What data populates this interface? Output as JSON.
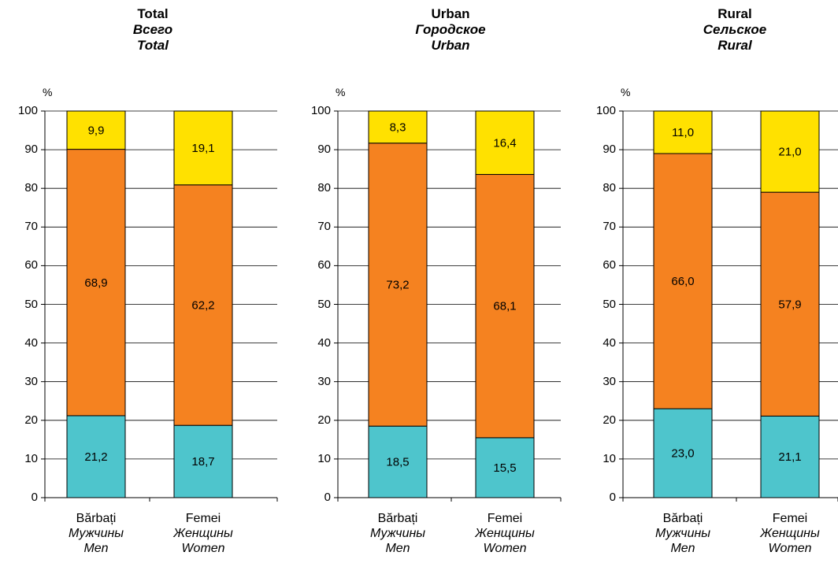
{
  "colors": {
    "bottom": "#4ec5cc",
    "middle": "#f58220",
    "top": "#ffe100",
    "stroke": "#000000",
    "grid": "#000000"
  },
  "chart_data": [
    {
      "type": "bar",
      "stacked": true,
      "title": [
        "Total",
        "Всего",
        "Total"
      ],
      "ylabel": "%",
      "ylim": [
        0,
        100
      ],
      "yticks": [
        "0",
        "10",
        "20",
        "30",
        "40",
        "50",
        "60",
        "70",
        "80",
        "90",
        "100"
      ],
      "grid": true,
      "categories": [
        {
          "line1": "Bărbați",
          "line2": "Мужчины",
          "line3": "Men"
        },
        {
          "line1": "Femei",
          "line2": "Женщины",
          "line3": "Women"
        }
      ],
      "series": [
        {
          "values": [
            21.2,
            18.7
          ],
          "labels": [
            "21,2",
            "18,7"
          ]
        },
        {
          "values": [
            68.9,
            62.2
          ],
          "labels": [
            "68,9",
            "62,2"
          ]
        },
        {
          "values": [
            9.9,
            19.1
          ],
          "labels": [
            "9,9",
            "19,1"
          ]
        }
      ]
    },
    {
      "type": "bar",
      "stacked": true,
      "title": [
        "Urban",
        "Городское",
        "Urban"
      ],
      "ylabel": "%",
      "ylim": [
        0,
        100
      ],
      "yticks": [
        "0",
        "10",
        "20",
        "30",
        "40",
        "50",
        "60",
        "70",
        "80",
        "90",
        "100"
      ],
      "grid": true,
      "categories": [
        {
          "line1": "Bărbați",
          "line2": "Мужчины",
          "line3": "Men"
        },
        {
          "line1": "Femei",
          "line2": "Женщины",
          "line3": "Women"
        }
      ],
      "series": [
        {
          "values": [
            18.5,
            15.5
          ],
          "labels": [
            "18,5",
            "15,5"
          ]
        },
        {
          "values": [
            73.2,
            68.1
          ],
          "labels": [
            "73,2",
            "68,1"
          ]
        },
        {
          "values": [
            8.3,
            16.4
          ],
          "labels": [
            "8,3",
            "16,4"
          ]
        }
      ]
    },
    {
      "type": "bar",
      "stacked": true,
      "title": [
        "Rural",
        "Сельское",
        "Rural"
      ],
      "ylabel": "%",
      "ylim": [
        0,
        100
      ],
      "yticks": [
        "0",
        "10",
        "20",
        "30",
        "40",
        "50",
        "60",
        "70",
        "80",
        "90",
        "100"
      ],
      "grid": true,
      "categories": [
        {
          "line1": "Bărbați",
          "line2": "Мужчины",
          "line3": "Men"
        },
        {
          "line1": "Femei",
          "line2": "Женщины",
          "line3": "Women"
        }
      ],
      "series": [
        {
          "values": [
            23.0,
            21.1
          ],
          "labels": [
            "23,0",
            "21,1"
          ]
        },
        {
          "values": [
            66.0,
            57.9
          ],
          "labels": [
            "66,0",
            "57,9"
          ]
        },
        {
          "values": [
            11.0,
            21.0
          ],
          "labels": [
            "11,0",
            "21,0"
          ]
        }
      ]
    }
  ]
}
